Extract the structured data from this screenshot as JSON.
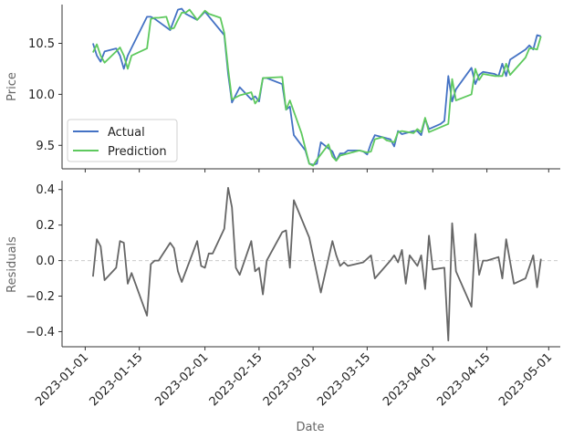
{
  "chart_data": [
    {
      "type": "line",
      "ylabel": "Price",
      "ylim": [
        9.27,
        10.88
      ],
      "yticks": [
        9.5,
        10.0,
        10.5
      ],
      "ytick_labels": [
        "9.5",
        "10.0",
        "10.5"
      ],
      "legend": "lower-left",
      "grid": false,
      "series": [
        {
          "name": "Actual",
          "color": "#4472c4",
          "points": [
            [
              "2023-01-03",
              10.5
            ],
            [
              "2023-01-04",
              10.38
            ],
            [
              "2023-01-05",
              10.32
            ],
            [
              "2023-01-06",
              10.42
            ],
            [
              "2023-01-09",
              10.45
            ],
            [
              "2023-01-10",
              10.38
            ],
            [
              "2023-01-11",
              10.25
            ],
            [
              "2023-01-12",
              10.38
            ],
            [
              "2023-01-17",
              10.76
            ],
            [
              "2023-01-18",
              10.76
            ],
            [
              "2023-01-19",
              10.74
            ],
            [
              "2023-01-23",
              10.63
            ],
            [
              "2023-01-24",
              10.73
            ],
            [
              "2023-01-25",
              10.83
            ],
            [
              "2023-01-26",
              10.84
            ],
            [
              "2023-01-27",
              10.79
            ],
            [
              "2023-01-30",
              10.73
            ],
            [
              "2023-01-31",
              10.77
            ],
            [
              "2023-02-01",
              10.81
            ],
            [
              "2023-02-06",
              10.58
            ],
            [
              "2023-02-07",
              10.2
            ],
            [
              "2023-02-08",
              9.92
            ],
            [
              "2023-02-10",
              10.07
            ],
            [
              "2023-02-13",
              9.95
            ],
            [
              "2023-02-14",
              9.98
            ],
            [
              "2023-02-15",
              9.93
            ],
            [
              "2023-02-16",
              10.16
            ],
            [
              "2023-02-17",
              10.16
            ],
            [
              "2023-02-21",
              10.1
            ],
            [
              "2023-02-22",
              9.85
            ],
            [
              "2023-02-23",
              9.88
            ],
            [
              "2023-02-24",
              9.6
            ],
            [
              "2023-02-27",
              9.45
            ],
            [
              "2023-02-28",
              9.32
            ],
            [
              "2023-03-01",
              9.31
            ],
            [
              "2023-03-02",
              9.32
            ],
            [
              "2023-03-03",
              9.53
            ],
            [
              "2023-03-06",
              9.44
            ],
            [
              "2023-03-07",
              9.35
            ],
            [
              "2023-03-08",
              9.42
            ],
            [
              "2023-03-09",
              9.42
            ],
            [
              "2023-03-10",
              9.45
            ],
            [
              "2023-03-13",
              9.45
            ],
            [
              "2023-03-14",
              9.44
            ],
            [
              "2023-03-15",
              9.41
            ],
            [
              "2023-03-16",
              9.52
            ],
            [
              "2023-03-17",
              9.6
            ],
            [
              "2023-03-20",
              9.57
            ],
            [
              "2023-03-21",
              9.56
            ],
            [
              "2023-03-22",
              9.49
            ],
            [
              "2023-03-23",
              9.64
            ],
            [
              "2023-03-24",
              9.61
            ],
            [
              "2023-03-27",
              9.64
            ],
            [
              "2023-03-28",
              9.64
            ],
            [
              "2023-03-29",
              9.6
            ],
            [
              "2023-03-30",
              9.76
            ],
            [
              "2023-03-31",
              9.66
            ],
            [
              "2023-04-03",
              9.71
            ],
            [
              "2023-04-04",
              9.74
            ],
            [
              "2023-04-05",
              10.18
            ],
            [
              "2023-04-06",
              9.93
            ],
            [
              "2023-04-07",
              10.05
            ],
            [
              "2023-04-11",
              10.26
            ],
            [
              "2023-04-12",
              10.1
            ],
            [
              "2023-04-13",
              10.19
            ],
            [
              "2023-04-14",
              10.22
            ],
            [
              "2023-04-17",
              10.2
            ],
            [
              "2023-04-18",
              10.18
            ],
            [
              "2023-04-19",
              10.3
            ],
            [
              "2023-04-20",
              10.18
            ],
            [
              "2023-04-21",
              10.34
            ],
            [
              "2023-04-25",
              10.44
            ],
            [
              "2023-04-26",
              10.48
            ],
            [
              "2023-04-27",
              10.44
            ],
            [
              "2023-04-28",
              10.58
            ],
            [
              "2023-04-29",
              10.57
            ]
          ]
        },
        {
          "name": "Prediction",
          "color": "#5ec95e",
          "points": [
            [
              "2023-01-03",
              10.41
            ],
            [
              "2023-01-04",
              10.49
            ],
            [
              "2023-01-05",
              10.38
            ],
            [
              "2023-01-06",
              10.31
            ],
            [
              "2023-01-09",
              10.42
            ],
            [
              "2023-01-10",
              10.46
            ],
            [
              "2023-01-11",
              10.38
            ],
            [
              "2023-01-12",
              10.25
            ],
            [
              "2023-01-13",
              10.38
            ],
            [
              "2023-01-17",
              10.45
            ],
            [
              "2023-01-18",
              10.74
            ],
            [
              "2023-01-19",
              10.75
            ],
            [
              "2023-01-20",
              10.75
            ],
            [
              "2023-01-22",
              10.76
            ],
            [
              "2023-01-23",
              10.64
            ],
            [
              "2023-01-24",
              10.65
            ],
            [
              "2023-01-25",
              10.73
            ],
            [
              "2023-01-26",
              10.8
            ],
            [
              "2023-01-27",
              10.8
            ],
            [
              "2023-01-28",
              10.83
            ],
            [
              "2023-01-30",
              10.73
            ],
            [
              "2023-02-01",
              10.82
            ],
            [
              "2023-02-02",
              10.79
            ],
            [
              "2023-02-05",
              10.75
            ],
            [
              "2023-02-06",
              10.6
            ],
            [
              "2023-02-07",
              10.25
            ],
            [
              "2023-02-08",
              9.95
            ],
            [
              "2023-02-10",
              9.99
            ],
            [
              "2023-02-13",
              10.02
            ],
            [
              "2023-02-14",
              9.91
            ],
            [
              "2023-02-15",
              9.96
            ],
            [
              "2023-02-16",
              10.16
            ],
            [
              "2023-02-21",
              10.17
            ],
            [
              "2023-02-22",
              9.85
            ],
            [
              "2023-02-23",
              9.94
            ],
            [
              "2023-02-26",
              9.62
            ],
            [
              "2023-02-28",
              9.32
            ],
            [
              "2023-03-01",
              9.3
            ],
            [
              "2023-03-02",
              9.36
            ],
            [
              "2023-03-05",
              9.51
            ],
            [
              "2023-03-06",
              9.39
            ],
            [
              "2023-03-07",
              9.35
            ],
            [
              "2023-03-08",
              9.4
            ],
            [
              "2023-03-13",
              9.45
            ],
            [
              "2023-03-14",
              9.44
            ],
            [
              "2023-03-15",
              9.43
            ],
            [
              "2023-03-16",
              9.44
            ],
            [
              "2023-03-17",
              9.56
            ],
            [
              "2023-03-19",
              9.58
            ],
            [
              "2023-03-20",
              9.55
            ],
            [
              "2023-03-22",
              9.53
            ],
            [
              "2023-03-23",
              9.63
            ],
            [
              "2023-03-24",
              9.64
            ],
            [
              "2023-03-27",
              9.62
            ],
            [
              "2023-03-28",
              9.66
            ],
            [
              "2023-03-29",
              9.63
            ],
            [
              "2023-03-30",
              9.77
            ],
            [
              "2023-03-31",
              9.63
            ],
            [
              "2023-04-05",
              9.71
            ],
            [
              "2023-04-06",
              10.15
            ],
            [
              "2023-04-07",
              9.94
            ],
            [
              "2023-04-11",
              10.0
            ],
            [
              "2023-04-12",
              10.25
            ],
            [
              "2023-04-13",
              10.14
            ],
            [
              "2023-04-14",
              10.2
            ],
            [
              "2023-04-17",
              10.18
            ],
            [
              "2023-04-19",
              10.18
            ],
            [
              "2023-04-20",
              10.3
            ],
            [
              "2023-04-21",
              10.19
            ],
            [
              "2023-04-25",
              10.36
            ],
            [
              "2023-04-26",
              10.45
            ],
            [
              "2023-04-27",
              10.45
            ],
            [
              "2023-04-28",
              10.44
            ],
            [
              "2023-04-29",
              10.57
            ]
          ]
        }
      ]
    },
    {
      "type": "line",
      "xlabel": "Date",
      "ylabel": "Residuals",
      "ylim": [
        -0.485,
        0.45
      ],
      "yticks": [
        -0.4,
        -0.2,
        0.0,
        0.2,
        0.4
      ],
      "ytick_labels": [
        "−0.4",
        "−0.2",
        "0.0",
        "0.2",
        "0.4"
      ],
      "zero_line": true,
      "grid": false,
      "series": [
        {
          "color": "#666666",
          "points": [
            [
              "2023-01-03",
              -0.09
            ],
            [
              "2023-01-04",
              0.12
            ],
            [
              "2023-01-05",
              0.08
            ],
            [
              "2023-01-06",
              -0.11
            ],
            [
              "2023-01-09",
              -0.04
            ],
            [
              "2023-01-10",
              0.11
            ],
            [
              "2023-01-11",
              0.1
            ],
            [
              "2023-01-12",
              -0.13
            ],
            [
              "2023-01-13",
              -0.07
            ],
            [
              "2023-01-17",
              -0.31
            ],
            [
              "2023-01-18",
              -0.02
            ],
            [
              "2023-01-19",
              0.0
            ],
            [
              "2023-01-20",
              0.0
            ],
            [
              "2023-01-23",
              0.1
            ],
            [
              "2023-01-24",
              0.07
            ],
            [
              "2023-01-25",
              -0.06
            ],
            [
              "2023-01-26",
              -0.12
            ],
            [
              "2023-01-30",
              0.11
            ],
            [
              "2023-01-31",
              -0.03
            ],
            [
              "2023-02-01",
              -0.04
            ],
            [
              "2023-02-02",
              0.04
            ],
            [
              "2023-02-03",
              0.04
            ],
            [
              "2023-02-06",
              0.18
            ],
            [
              "2023-02-07",
              0.41
            ],
            [
              "2023-02-08",
              0.3
            ],
            [
              "2023-02-09",
              -0.04
            ],
            [
              "2023-02-10",
              -0.08
            ],
            [
              "2023-02-13",
              0.11
            ],
            [
              "2023-02-14",
              -0.06
            ],
            [
              "2023-02-15",
              -0.04
            ],
            [
              "2023-02-16",
              -0.19
            ],
            [
              "2023-02-17",
              0.0
            ],
            [
              "2023-02-21",
              0.16
            ],
            [
              "2023-02-22",
              0.17
            ],
            [
              "2023-02-23",
              -0.04
            ],
            [
              "2023-02-24",
              0.34
            ],
            [
              "2023-02-28",
              0.13
            ],
            [
              "2023-03-03",
              -0.18
            ],
            [
              "2023-03-06",
              0.11
            ],
            [
              "2023-03-07",
              0.03
            ],
            [
              "2023-03-08",
              -0.03
            ],
            [
              "2023-03-09",
              -0.01
            ],
            [
              "2023-03-10",
              -0.03
            ],
            [
              "2023-03-14",
              -0.01
            ],
            [
              "2023-03-16",
              0.03
            ],
            [
              "2023-03-17",
              -0.1
            ],
            [
              "2023-03-21",
              0.0
            ],
            [
              "2023-03-22",
              0.03
            ],
            [
              "2023-03-23",
              -0.01
            ],
            [
              "2023-03-24",
              0.06
            ],
            [
              "2023-03-25",
              -0.13
            ],
            [
              "2023-03-26",
              0.03
            ],
            [
              "2023-03-28",
              -0.03
            ],
            [
              "2023-03-29",
              0.03
            ],
            [
              "2023-03-30",
              -0.16
            ],
            [
              "2023-03-31",
              0.14
            ],
            [
              "2023-04-01",
              -0.05
            ],
            [
              "2023-04-04",
              -0.04
            ],
            [
              "2023-04-05",
              -0.45
            ],
            [
              "2023-04-06",
              0.21
            ],
            [
              "2023-04-07",
              -0.06
            ],
            [
              "2023-04-11",
              -0.26
            ],
            [
              "2023-04-12",
              0.15
            ],
            [
              "2023-04-13",
              -0.08
            ],
            [
              "2023-04-14",
              0.0
            ],
            [
              "2023-04-15",
              0.0
            ],
            [
              "2023-04-18",
              0.02
            ],
            [
              "2023-04-19",
              -0.1
            ],
            [
              "2023-04-20",
              0.12
            ],
            [
              "2023-04-22",
              -0.13
            ],
            [
              "2023-04-25",
              -0.1
            ],
            [
              "2023-04-27",
              0.03
            ],
            [
              "2023-04-28",
              -0.15
            ],
            [
              "2023-04-29",
              0.01
            ]
          ]
        }
      ]
    }
  ],
  "x_axis": {
    "xlim": [
      "2022-12-26",
      "2023-05-04"
    ],
    "ticks": [
      "2023-01-01",
      "2023-01-15",
      "2023-02-01",
      "2023-02-15",
      "2023-03-01",
      "2023-03-15",
      "2023-04-01",
      "2023-04-15",
      "2023-05-01"
    ],
    "tick_labels": [
      "2023-01-01",
      "2023-01-15",
      "2023-02-01",
      "2023-02-15",
      "2023-03-01",
      "2023-03-15",
      "2023-04-01",
      "2023-04-15",
      "2023-05-01"
    ]
  },
  "colors": {
    "axis": "#333333",
    "label": "#666666",
    "zero_line": "#cccccc"
  }
}
